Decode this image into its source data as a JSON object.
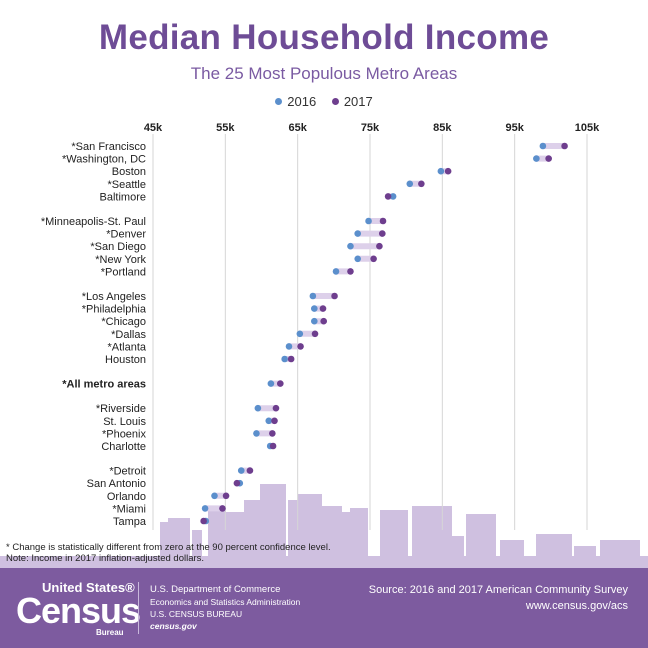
{
  "title": "Median Household Income",
  "subtitle": "The 25 Most Populous Metro Areas",
  "legend": [
    {
      "label": "2016",
      "color": "#5b8fcc"
    },
    {
      "label": "2017",
      "color": "#6e3e8e"
    }
  ],
  "chart_data": {
    "type": "scatter",
    "variant": "dumbbell",
    "x_ticks": [
      "45k",
      "55k",
      "65k",
      "75k",
      "85k",
      "95k",
      "105k"
    ],
    "xlim": [
      45000,
      105000
    ],
    "series": [
      {
        "name": "2016",
        "color": "#5b8fcc"
      },
      {
        "name": "2017",
        "color": "#6e3e8e"
      }
    ],
    "connector_color": "#ddd0ea",
    "grid": true,
    "rows": [
      {
        "label": "*San Francisco",
        "v2016": 98900,
        "v2017": 101900
      },
      {
        "label": "*Washington, DC",
        "v2016": 98000,
        "v2017": 99700
      },
      {
        "label": "Boston",
        "v2016": 84800,
        "v2017": 85800
      },
      {
        "label": "*Seattle",
        "v2016": 80500,
        "v2017": 82100
      },
      {
        "label": "Baltimore",
        "v2016": 78200,
        "v2017": 77500
      },
      {
        "label": "*Minneapolis-St. Paul",
        "v2016": 74800,
        "v2017": 76800
      },
      {
        "label": "*Denver",
        "v2016": 73300,
        "v2017": 76700
      },
      {
        "label": "*San Diego",
        "v2016": 72300,
        "v2017": 76300
      },
      {
        "label": "*New York",
        "v2016": 73300,
        "v2017": 75500
      },
      {
        "label": "*Portland",
        "v2016": 70300,
        "v2017": 72300
      },
      {
        "label": "*Los Angeles",
        "v2016": 67100,
        "v2017": 70100
      },
      {
        "label": "*Philadelphia",
        "v2016": 67300,
        "v2017": 68500
      },
      {
        "label": "*Chicago",
        "v2016": 67300,
        "v2017": 68600
      },
      {
        "label": "*Dallas",
        "v2016": 65300,
        "v2017": 67400
      },
      {
        "label": "*Atlanta",
        "v2016": 63800,
        "v2017": 65400
      },
      {
        "label": "Houston",
        "v2016": 63200,
        "v2017": 64100
      },
      {
        "label": "*All metro areas",
        "v2016": 61300,
        "v2017": 62600,
        "bold": true
      },
      {
        "label": "*Riverside",
        "v2016": 59500,
        "v2017": 62000
      },
      {
        "label": "St. Louis",
        "v2016": 61000,
        "v2017": 61800
      },
      {
        "label": "*Phoenix",
        "v2016": 59300,
        "v2017": 61500
      },
      {
        "label": "Charlotte",
        "v2016": 61200,
        "v2017": 61600
      },
      {
        "label": "*Detroit",
        "v2016": 57200,
        "v2017": 58400
      },
      {
        "label": "San Antonio",
        "v2016": 57000,
        "v2017": 56600
      },
      {
        "label": "Orlando",
        "v2016": 53500,
        "v2017": 55100
      },
      {
        "label": "*Miami",
        "v2016": 52200,
        "v2017": 54600
      },
      {
        "label": "Tampa",
        "v2016": 52300,
        "v2017": 52000
      }
    ]
  },
  "footnotes": {
    "line1": "* Change is statistically different from zero at the 90 percent confidence level.",
    "line2": "Note: Income in 2017 inflation-adjusted dollars."
  },
  "footer": {
    "logo_top": "United States®",
    "logo_main": "Census",
    "logo_bottom": "Bureau",
    "dept": "U.S. Department of Commerce",
    "admin": "Economics and Statistics Administration",
    "bureau": "U.S. CENSUS BUREAU",
    "site": "census.gov",
    "source": "Source: 2016 and 2017 American Community Survey",
    "source_url": "www.census.gov/acs"
  }
}
